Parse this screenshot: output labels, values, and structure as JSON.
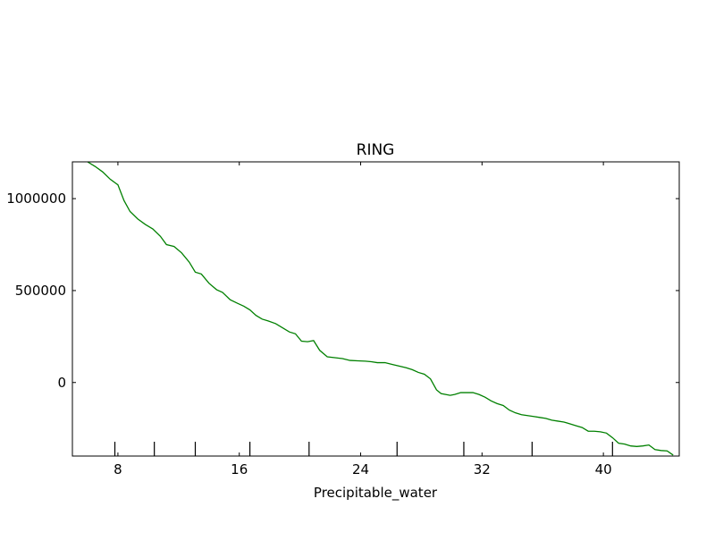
{
  "chart_data": {
    "type": "line",
    "title": "RING",
    "xlabel": "Precipitable_water",
    "ylabel": "",
    "xlim": [
      5,
      45
    ],
    "ylim": [
      -400000,
      1200000
    ],
    "xticks": [
      8,
      16,
      24,
      32,
      40
    ],
    "xtick_labels": [
      "8",
      "16",
      "24",
      "32",
      "40"
    ],
    "yticks": [
      0,
      500000,
      1000000
    ],
    "ytick_labels": [
      "0",
      "500000",
      "1000000"
    ],
    "rug_x": [
      7.8,
      10.4,
      13.1,
      16.7,
      20.6,
      26.4,
      30.8,
      35.3,
      40.6
    ],
    "grid": false,
    "legend": "none",
    "line_color": "#008000",
    "series": [
      {
        "x": [
          6.0,
          6.5,
          7.0,
          7.5,
          8.0,
          8.4,
          8.8,
          9.3,
          9.8,
          10.3,
          10.8,
          11.2,
          11.7,
          12.2,
          12.7,
          13.1,
          13.5,
          14.0,
          14.5,
          14.9,
          15.4,
          15.9,
          16.3,
          16.7,
          17.1,
          17.5,
          17.9,
          18.4,
          18.9,
          19.3,
          19.7,
          20.1,
          20.5,
          20.9,
          21.3,
          21.8,
          22.3,
          22.8,
          23.3,
          23.8,
          24.3,
          24.7,
          25.1,
          25.6,
          26.1,
          26.6,
          27.0,
          27.4,
          27.8,
          28.2,
          28.6,
          29.0,
          29.3,
          29.6,
          29.9,
          30.2,
          30.6,
          31.0,
          31.4,
          31.8,
          32.2,
          32.6,
          33.0,
          33.4,
          33.8,
          34.2,
          34.6,
          35.0,
          35.4,
          35.8,
          36.2,
          36.6,
          37.0,
          37.4,
          37.8,
          38.2,
          38.6,
          39.0,
          39.4,
          39.8,
          40.2,
          40.6,
          41.0,
          41.4,
          41.8,
          42.2,
          42.6,
          43.0,
          43.4,
          43.8,
          44.2,
          44.6
        ],
        "values": [
          1200000,
          1175000,
          1145000,
          1105000,
          1075000,
          990000,
          930000,
          890000,
          860000,
          835000,
          795000,
          750000,
          740000,
          705000,
          655000,
          600000,
          590000,
          540000,
          505000,
          490000,
          450000,
          430000,
          415000,
          395000,
          365000,
          345000,
          335000,
          320000,
          295000,
          275000,
          265000,
          225000,
          222000,
          228000,
          175000,
          140000,
          135000,
          130000,
          120000,
          118000,
          116000,
          113000,
          108000,
          108000,
          98000,
          88000,
          80000,
          70000,
          55000,
          45000,
          20000,
          -40000,
          -60000,
          -65000,
          -70000,
          -65000,
          -55000,
          -55000,
          -55000,
          -65000,
          -80000,
          -100000,
          -115000,
          -125000,
          -150000,
          -165000,
          -175000,
          -180000,
          -185000,
          -190000,
          -195000,
          -205000,
          -210000,
          -215000,
          -225000,
          -235000,
          -245000,
          -265000,
          -265000,
          -268000,
          -275000,
          -300000,
          -330000,
          -335000,
          -345000,
          -348000,
          -345000,
          -340000,
          -365000,
          -370000,
          -372000,
          -395000
        ]
      }
    ]
  }
}
